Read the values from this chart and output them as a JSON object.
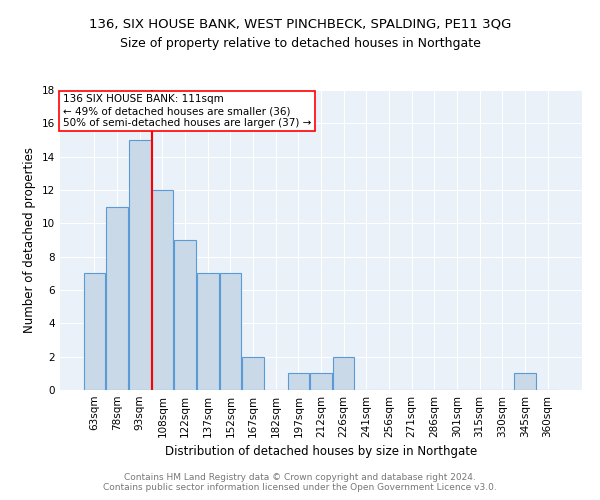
{
  "title1": "136, SIX HOUSE BANK, WEST PINCHBECK, SPALDING, PE11 3QG",
  "title2": "Size of property relative to detached houses in Northgate",
  "xlabel": "Distribution of detached houses by size in Northgate",
  "ylabel": "Number of detached properties",
  "bin_labels": [
    "63sqm",
    "78sqm",
    "93sqm",
    "108sqm",
    "122sqm",
    "137sqm",
    "152sqm",
    "167sqm",
    "182sqm",
    "197sqm",
    "212sqm",
    "226sqm",
    "241sqm",
    "256sqm",
    "271sqm",
    "286sqm",
    "301sqm",
    "315sqm",
    "330sqm",
    "345sqm",
    "360sqm"
  ],
  "bar_values": [
    7,
    11,
    15,
    12,
    9,
    7,
    7,
    2,
    0,
    1,
    1,
    2,
    0,
    0,
    0,
    0,
    0,
    0,
    0,
    1,
    0
  ],
  "bar_color": "#c9d9e8",
  "bar_edgecolor": "#5b9bd5",
  "subject_line_color": "red",
  "annotation_text": "136 SIX HOUSE BANK: 111sqm\n← 49% of detached houses are smaller (36)\n50% of semi-detached houses are larger (37) →",
  "annotation_box_color": "white",
  "annotation_box_edgecolor": "red",
  "ylim": [
    0,
    18
  ],
  "yticks": [
    0,
    2,
    4,
    6,
    8,
    10,
    12,
    14,
    16,
    18
  ],
  "footer": "Contains HM Land Registry data © Crown copyright and database right 2024.\nContains public sector information licensed under the Open Government Licence v3.0.",
  "plot_bg_color": "#eaf1f8",
  "grid_color": "white",
  "title1_fontsize": 9.5,
  "title2_fontsize": 9.0,
  "ylabel_fontsize": 8.5,
  "xlabel_fontsize": 8.5,
  "tick_fontsize": 7.5,
  "annot_fontsize": 7.5,
  "footer_fontsize": 6.5,
  "footer_color": "#777777"
}
